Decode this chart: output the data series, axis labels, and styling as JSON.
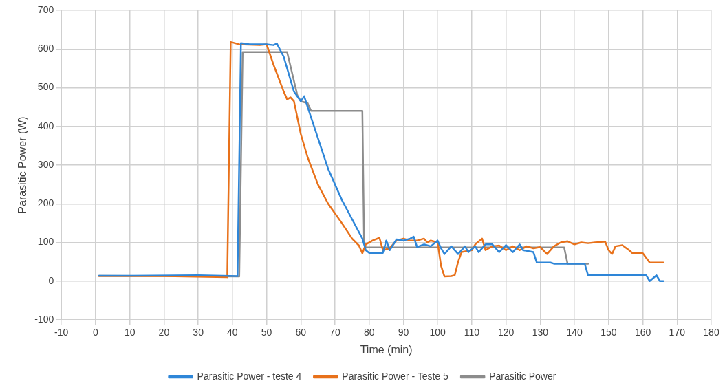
{
  "chart_data": {
    "type": "line",
    "xlabel": "Time (min)",
    "ylabel": "Parasitic Power (W)",
    "xlim": [
      -10,
      180
    ],
    "xticks": [
      -10,
      0,
      10,
      20,
      30,
      40,
      50,
      60,
      70,
      80,
      90,
      100,
      110,
      120,
      130,
      140,
      150,
      160,
      170,
      180
    ],
    "ylim": [
      -100,
      700
    ],
    "yticks": [
      -100,
      0,
      100,
      200,
      300,
      400,
      500,
      600,
      700
    ],
    "grid": true,
    "legend": "bottom",
    "marker": "none",
    "line_style": "solid",
    "series": [
      {
        "name": "Parasitic Power - teste 4",
        "color": "#2e86d8",
        "x": [
          1,
          10,
          30,
          41.5,
          42.5,
          45,
          50,
          52,
          53,
          55,
          58,
          60,
          61,
          62,
          65,
          68,
          72,
          75,
          78,
          79,
          80,
          84,
          85,
          86,
          88,
          90,
          92,
          93,
          94,
          96,
          98,
          100,
          101,
          102,
          104,
          106,
          108,
          109,
          111,
          112,
          114,
          116,
          118,
          120,
          122,
          124,
          125,
          128,
          129,
          133,
          134,
          143,
          144,
          160,
          161,
          162,
          164,
          165,
          166
        ],
        "values": [
          14,
          14,
          15,
          13,
          615,
          612,
          612,
          610,
          614,
          580,
          490,
          465,
          478,
          450,
          370,
          290,
          210,
          160,
          110,
          80,
          73,
          73,
          105,
          80,
          108,
          105,
          110,
          115,
          88,
          95,
          90,
          105,
          85,
          70,
          90,
          70,
          90,
          75,
          90,
          75,
          95,
          95,
          75,
          93,
          75,
          95,
          80,
          75,
          48,
          48,
          45,
          45,
          15,
          15,
          15,
          0,
          15,
          0,
          0
        ]
      },
      {
        "name": "Parasitic Power - Teste 5",
        "color": "#e8711a",
        "x": [
          1,
          20,
          38.5,
          39.5,
          42,
          48,
          50,
          52,
          55,
          56,
          57,
          58,
          60,
          62,
          65,
          68,
          72,
          75,
          77,
          78,
          79,
          81,
          83,
          84,
          86,
          88,
          90,
          92,
          94,
          96,
          97,
          98,
          100,
          101,
          102,
          104,
          105,
          106,
          107,
          110,
          111,
          113,
          114,
          116,
          118,
          120,
          122,
          124,
          126,
          128,
          130,
          132,
          134,
          136,
          138,
          140,
          142,
          144,
          146,
          149,
          150,
          151,
          152,
          154,
          156,
          157,
          160,
          161,
          162,
          164,
          166
        ],
        "values": [
          13,
          13,
          10,
          618,
          612,
          610,
          612,
          560,
          490,
          470,
          475,
          465,
          380,
          320,
          250,
          200,
          150,
          110,
          92,
          72,
          95,
          105,
          112,
          80,
          85,
          105,
          110,
          105,
          105,
          110,
          100,
          105,
          100,
          40,
          12,
          13,
          15,
          50,
          75,
          80,
          95,
          110,
          80,
          90,
          92,
          80,
          90,
          80,
          90,
          85,
          88,
          70,
          90,
          100,
          103,
          95,
          100,
          98,
          100,
          102,
          80,
          70,
          90,
          93,
          80,
          72,
          72,
          60,
          48,
          48,
          48
        ]
      },
      {
        "name": "Parasitic Power",
        "color": "#8c8c8c",
        "x": [
          1,
          42,
          43,
          56,
          57,
          59,
          60,
          62,
          63,
          77,
          78,
          78.5,
          79,
          137,
          138,
          144
        ],
        "values": [
          14,
          12,
          592,
          592,
          555,
          480,
          465,
          460,
          440,
          440,
          440,
          100,
          87,
          87,
          45,
          45
        ]
      }
    ]
  }
}
